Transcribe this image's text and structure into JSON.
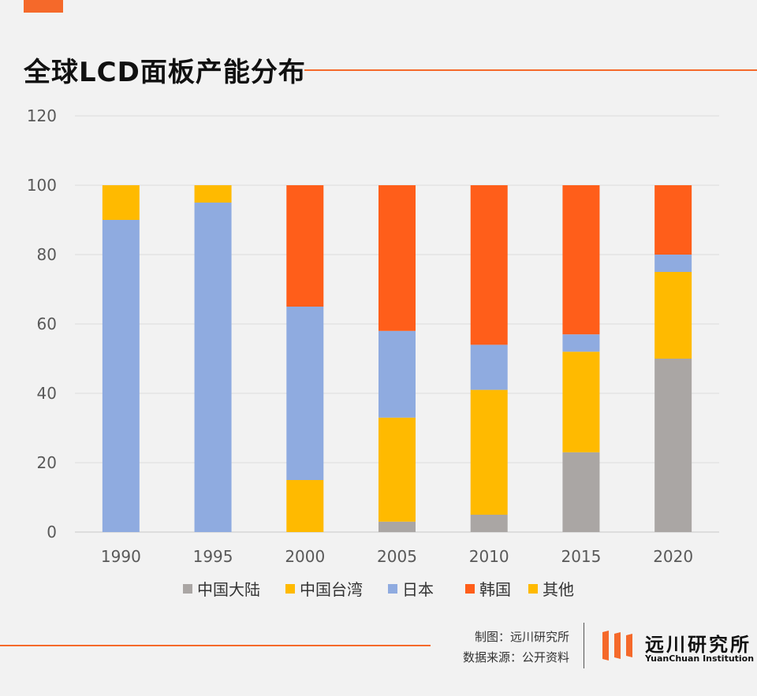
{
  "header": {
    "title": "全球LCD面板产能分布"
  },
  "footer": {
    "credit_chart": "制图：远川研究所",
    "credit_source": "数据来源：公开资料",
    "logo_cn": "远川研究所",
    "logo_en": "YuanChuan Institution"
  },
  "colors": {
    "accent": "#f5692a"
  },
  "chart_data": {
    "type": "bar",
    "stacked": true,
    "title": "全球LCD面板产能分布",
    "xlabel": "",
    "ylabel": "",
    "ylim": [
      0,
      120
    ],
    "yticks": [
      0,
      20,
      40,
      60,
      80,
      100,
      120
    ],
    "grid": true,
    "legend_position": "bottom",
    "categories": [
      "1990",
      "1995",
      "2000",
      "2005",
      "2010",
      "2015",
      "2020"
    ],
    "series": [
      {
        "name": "中国大陆",
        "color": "#aaa6a4",
        "values": [
          0,
          0,
          0,
          3,
          5,
          23,
          50
        ]
      },
      {
        "name": "中国台湾",
        "color": "#ffba00",
        "values": [
          0,
          0,
          15,
          30,
          36,
          29,
          25
        ]
      },
      {
        "name": "日本",
        "color": "#8fabe0",
        "values": [
          90,
          95,
          50,
          25,
          13,
          5,
          5
        ]
      },
      {
        "name": "韩国",
        "color": "#ff5e1a",
        "values": [
          0,
          0,
          35,
          42,
          46,
          43,
          20
        ]
      },
      {
        "name": "其他",
        "color": "#ffba00",
        "values": [
          10,
          5,
          0,
          0,
          0,
          0,
          0
        ]
      }
    ]
  }
}
